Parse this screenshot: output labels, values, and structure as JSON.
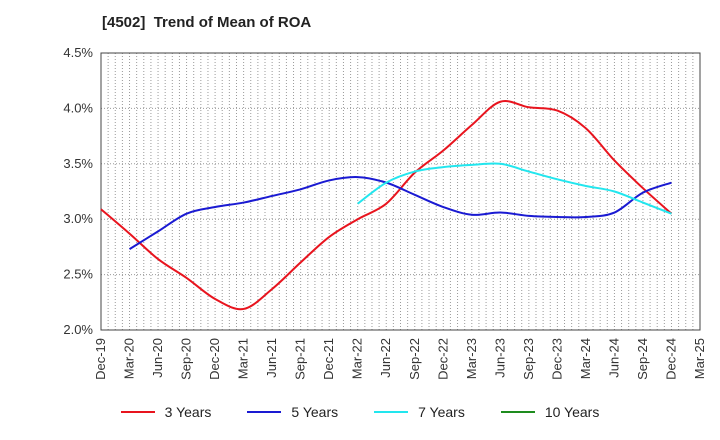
{
  "chart_data": {
    "type": "line",
    "title": "[4502]  Trend of Mean of ROA",
    "xlabel": "",
    "ylabel": "",
    "x_ticks": [
      "Dec-19",
      "Mar-20",
      "Jun-20",
      "Sep-20",
      "Dec-20",
      "Mar-21",
      "Jun-21",
      "Sep-21",
      "Dec-21",
      "Mar-22",
      "Jun-22",
      "Sep-22",
      "Dec-22",
      "Mar-23",
      "Jun-23",
      "Sep-23",
      "Dec-23",
      "Mar-24",
      "Jun-24",
      "Sep-24",
      "Dec-24",
      "Mar-25"
    ],
    "y_ticks": [
      "2.0%",
      "2.5%",
      "3.0%",
      "3.5%",
      "4.0%",
      "4.5%"
    ],
    "ylim": [
      2.0,
      4.5
    ],
    "grid": true,
    "legend_position": "bottom",
    "series": [
      {
        "name": "3 Years",
        "color": "#e8141e",
        "x": [
          "Dec-19",
          "Mar-20",
          "Jun-20",
          "Sep-20",
          "Dec-20",
          "Mar-21",
          "Jun-21",
          "Sep-21",
          "Dec-21",
          "Mar-22",
          "Jun-22",
          "Sep-22",
          "Dec-22",
          "Mar-23",
          "Jun-23",
          "Sep-23",
          "Dec-23",
          "Mar-24",
          "Jun-24",
          "Sep-24",
          "Dec-24"
        ],
        "values": [
          3.09,
          2.87,
          2.64,
          2.47,
          2.28,
          2.19,
          2.37,
          2.61,
          2.84,
          3.0,
          3.14,
          3.42,
          3.62,
          3.85,
          4.06,
          4.01,
          3.98,
          3.82,
          3.53,
          3.28,
          3.05
        ]
      },
      {
        "name": "5 Years",
        "color": "#1a1ad2",
        "x": [
          "Mar-20",
          "Jun-20",
          "Sep-20",
          "Dec-20",
          "Mar-21",
          "Jun-21",
          "Sep-21",
          "Dec-21",
          "Mar-22",
          "Jun-22",
          "Sep-22",
          "Dec-22",
          "Mar-23",
          "Jun-23",
          "Sep-23",
          "Dec-23",
          "Mar-24",
          "Jun-24",
          "Sep-24",
          "Dec-24"
        ],
        "values": [
          2.73,
          2.89,
          3.05,
          3.11,
          3.15,
          3.21,
          3.27,
          3.35,
          3.38,
          3.33,
          3.22,
          3.11,
          3.04,
          3.06,
          3.03,
          3.02,
          3.02,
          3.06,
          3.24,
          3.33
        ]
      },
      {
        "name": "7 Years",
        "color": "#22e6ee",
        "x": [
          "Mar-22",
          "Jun-22",
          "Sep-22",
          "Dec-22",
          "Mar-23",
          "Jun-23",
          "Sep-23",
          "Dec-23",
          "Mar-24",
          "Jun-24",
          "Sep-24",
          "Dec-24"
        ],
        "values": [
          3.14,
          3.33,
          3.43,
          3.47,
          3.49,
          3.5,
          3.43,
          3.36,
          3.3,
          3.25,
          3.15,
          3.05
        ]
      },
      {
        "name": "10 Years",
        "color": "#1e8c1e",
        "x": [],
        "values": []
      }
    ]
  }
}
